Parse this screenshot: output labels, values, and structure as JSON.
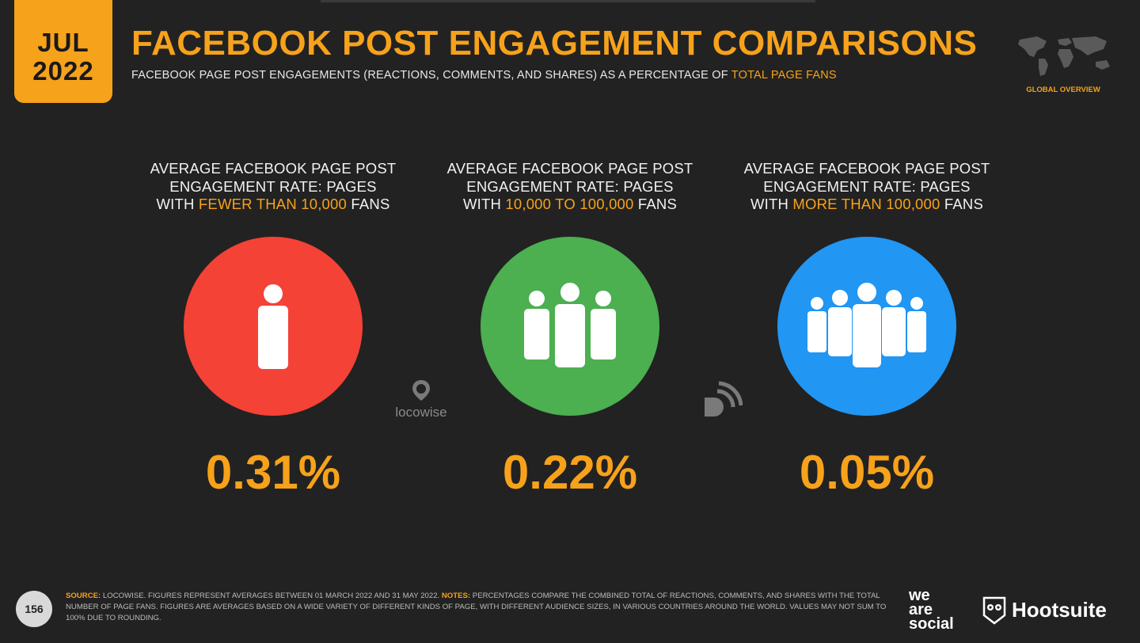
{
  "header": {
    "date_month": "JUL",
    "date_year": "2022",
    "title": "FACEBOOK POST ENGAGEMENT COMPARISONS",
    "subtitle_prefix": "FACEBOOK PAGE POST ENGAGEMENTS (REACTIONS, COMMENTS, AND SHARES) AS A PERCENTAGE OF",
    "subtitle_highlight": "TOTAL PAGE FANS",
    "region": "GLOBAL OVERVIEW"
  },
  "columns": [
    {
      "line1": "AVERAGE FACEBOOK PAGE POST",
      "line2": "ENGAGEMENT RATE: PAGES",
      "pre": "WITH",
      "highlight": "FEWER THAN 10,000",
      "post": "FANS",
      "value": "0.31%",
      "color": "#f44236",
      "icon": "single-person-icon"
    },
    {
      "line1": "AVERAGE FACEBOOK PAGE POST",
      "line2": "ENGAGEMENT RATE: PAGES",
      "pre": "WITH",
      "highlight": "10,000 TO 100,000",
      "post": "FANS",
      "value": "0.22%",
      "color": "#4caf50",
      "icon": "three-people-icon"
    },
    {
      "line1": "AVERAGE FACEBOOK PAGE POST",
      "line2": "ENGAGEMENT RATE: PAGES",
      "pre": "WITH",
      "highlight": "MORE THAN 100,000",
      "post": "FANS",
      "value": "0.05%",
      "color": "#2196f3",
      "icon": "five-people-icon"
    }
  ],
  "source_logos": {
    "locowise": "locowise"
  },
  "footer": {
    "page_number": "156",
    "source_label": "SOURCE:",
    "source_text": "LOCOWISE. FIGURES REPRESENT AVERAGES BETWEEN 01 MARCH 2022 AND 31 MAY 2022.",
    "notes_label": "NOTES:",
    "notes_text": "PERCENTAGES COMPARE THE COMBINED TOTAL OF REACTIONS, COMMENTS, AND SHARES WITH THE TOTAL NUMBER OF PAGE FANS. FIGURES ARE AVERAGES BASED ON A WIDE VARIETY OF DIFFERENT KINDS OF PAGE, WITH DIFFERENT AUDIENCE SIZES, IN VARIOUS COUNTRIES AROUND THE WORLD. VALUES MAY NOT SUM TO 100% DUE TO ROUNDING.",
    "brand1_line1": "we",
    "brand1_line2": "are",
    "brand1_line3": "social",
    "brand2": "Hootsuite"
  }
}
